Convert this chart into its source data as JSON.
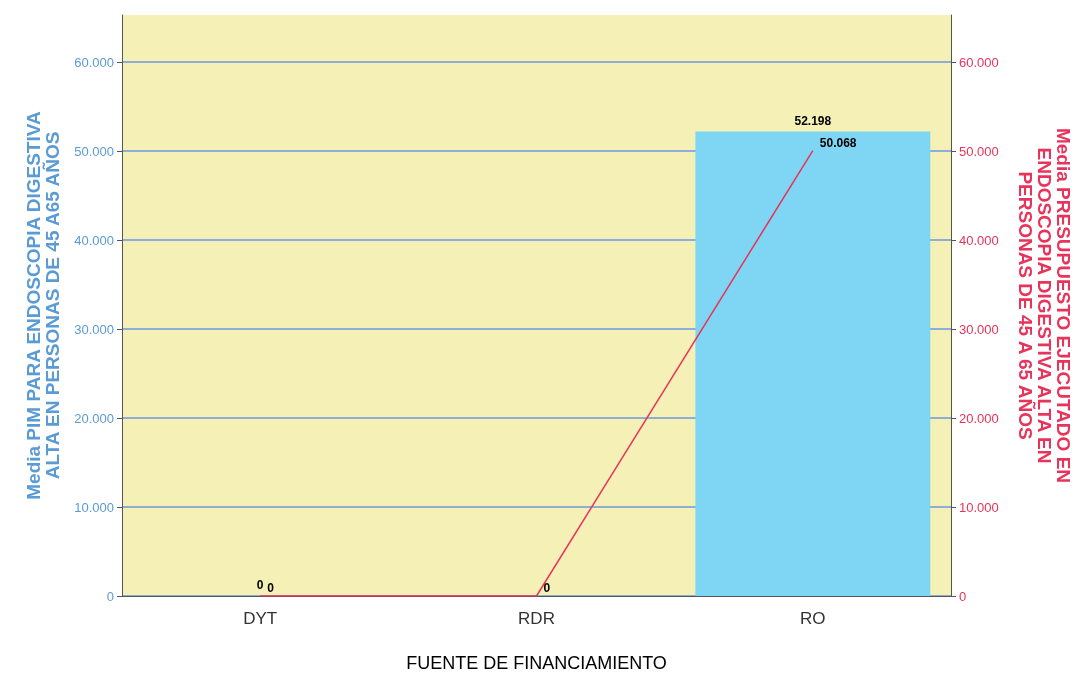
{
  "chart_data": {
    "type": "bar",
    "xlabel": "FUENTE DE FINANCIAMIENTO",
    "ylabel": "Media PIM PARA ENDOSCOPIA DIGESTIVA ALTA EN PERSONAS DE 45 A65 AÑOS",
    "y2label": "Media PRESUPUESTO EJECUTADO EN ENDOSCOPIA DIGESTIVA ALTA EN PERSONAS DE 45 A 65 AÑOS",
    "categories": [
      "DYT",
      "RDR",
      "RO"
    ],
    "series": [
      {
        "color": "#7fd6f4",
        "values": [
          0,
          0,
          52198
        ],
        "value_labels": [
          "0",
          null,
          "52.198"
        ]
      },
      {
        "type": "line",
        "axis": "y2",
        "color": "#e8335a",
        "values": [
          0,
          0,
          50068
        ],
        "value_labels": [
          "0",
          "0",
          "50.068"
        ]
      }
    ],
    "ylim": [
      0,
      65300
    ],
    "yticks": [
      0,
      {
        "value": 10000,
        "label": "10.000"
      },
      {
        "value": 20000,
        "label": "20.000"
      },
      {
        "value": 30000,
        "label": "30.000"
      },
      {
        "value": 40000,
        "label": "40.000"
      },
      {
        "value": 50000,
        "label": "50.000"
      },
      {
        "value": 60000,
        "label": "60.000"
      }
    ],
    "y2lim": [
      0,
      65300
    ],
    "y2ticks": [
      0,
      {
        "value": 10000,
        "label": "10.000"
      },
      {
        "value": 20000,
        "label": "20.000"
      },
      {
        "value": 30000,
        "label": "30.000"
      },
      {
        "value": 40000,
        "label": "40.000"
      },
      {
        "value": 50000,
        "label": "50.000"
      },
      {
        "value": 60000,
        "label": "60.000"
      }
    ],
    "grid": "y",
    "marker": "none"
  }
}
